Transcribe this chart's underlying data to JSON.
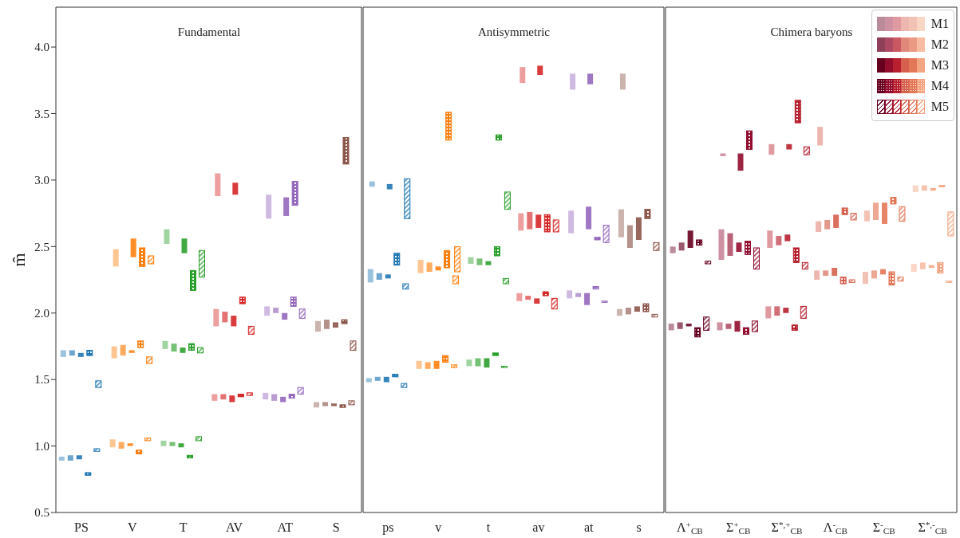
{
  "chart_data": [
    {
      "type": "bar",
      "title": "Fundamental",
      "ylabel": "m̂",
      "categories": [
        "PS",
        "V",
        "T",
        "AV",
        "AT",
        "S"
      ],
      "ylim": [
        0.5,
        4.3
      ],
      "yticks": [
        0.5,
        {
          "value": 1,
          "label": "1.0"
        },
        1.5,
        {
          "value": 2,
          "label": "2.0"
        },
        2.5,
        {
          "value": 3,
          "label": "3.0"
        },
        3.5,
        {
          "value": 4,
          "label": "4.0"
        }
      ],
      "series": [
        {
          "colors": [
            "#1f77b4",
            "#ff7f0e",
            "#2ca02c",
            "#d62728",
            "#9467bd",
            "#8c564b"
          ],
          "base": [
            0.89,
            0.99,
            1.0,
            1.34,
            1.35,
            1.29
          ],
          "values": [
            0.03,
            0.06,
            0.04,
            0.05,
            0.05,
            0.04
          ]
        },
        {
          "colors": [
            "#1f77b4",
            "#ff7f0e",
            "#2ca02c",
            "#d62728",
            "#9467bd",
            "#8c564b"
          ],
          "base": [
            1.67,
            1.66,
            1.73,
            1.9,
            1.98,
            1.86
          ],
          "values": [
            0.05,
            0.09,
            0.06,
            0.13,
            0.07,
            0.08
          ]
        },
        {
          "colors": [
            "#1f77b4",
            "#ff7f0e",
            "#2ca02c",
            "#d62728",
            "#9467bd",
            "#8c564b"
          ],
          "base": [
            null,
            2.35,
            2.52,
            2.88,
            2.71,
            null
          ],
          "values": [
            null,
            0.13,
            0.11,
            0.17,
            0.18,
            null
          ]
        },
        {
          "colors": [
            "#1f77b4",
            "#ff7f0e",
            "#2ca02c",
            "#d62728",
            "#9467bd",
            "#8c564b"
          ],
          "base": [
            0.89,
            0.98,
            1.0,
            1.35,
            1.34,
            1.3
          ],
          "values": [
            0.04,
            0.05,
            0.03,
            0.04,
            0.05,
            0.03
          ]
        },
        {
          "colors": [
            "#1f77b4",
            "#ff7f0e",
            "#2ca02c",
            "#d62728",
            "#9467bd",
            "#8c564b"
          ],
          "base": [
            1.68,
            1.68,
            1.71,
            1.93,
            2.0,
            1.88
          ],
          "values": [
            0.04,
            0.08,
            0.06,
            0.08,
            0.04,
            0.07
          ]
        },
        {
          "colors": [
            "#1f77b4",
            "#ff7f0e",
            "#2ca02c",
            "#d62728",
            "#9467bd",
            "#8c564b"
          ],
          "base": [
            null,
            null,
            null,
            null,
            null,
            null
          ],
          "values": [
            null,
            null,
            null,
            null,
            null,
            null
          ]
        },
        {
          "colors": [
            "#1f77b4",
            "#ff7f0e",
            "#2ca02c",
            "#d62728",
            "#9467bd",
            "#8c564b"
          ],
          "base": [
            0.9,
            1.0,
            0.99,
            1.33,
            1.33,
            1.3
          ],
          "values": [
            0.03,
            0.02,
            0.03,
            0.05,
            0.04,
            0.02
          ]
        },
        {
          "colors": [
            "#1f77b4",
            "#ff7f0e",
            "#2ca02c",
            "#d62728",
            "#9467bd",
            "#8c564b"
          ],
          "base": [
            1.67,
            1.7,
            1.7,
            1.9,
            1.95,
            1.89
          ],
          "values": [
            0.03,
            0.02,
            0.04,
            0.08,
            0.05,
            0.04
          ]
        },
        {
          "colors": [
            "#1f77b4",
            "#ff7f0e",
            "#2ca02c",
            "#d62728",
            "#9467bd",
            "#8c564b"
          ],
          "base": [
            null,
            2.42,
            2.45,
            2.89,
            2.73,
            null
          ],
          "values": [
            null,
            0.14,
            0.11,
            0.09,
            0.14,
            null
          ]
        },
        {
          "colors": [
            "#1f77b4",
            "#ff7f0e",
            "#2ca02c",
            "#d62728",
            "#9467bd",
            "#8c564b"
          ],
          "base": [
            0.78,
            0.94,
            0.91,
            1.37,
            1.36,
            1.29
          ],
          "values": [
            0.02,
            0.03,
            0.02,
            0.02,
            0.03,
            0.02
          ]
        },
        {
          "colors": [
            "#1f77b4",
            "#ff7f0e",
            "#2ca02c",
            "#d62728",
            "#9467bd",
            "#8c564b"
          ],
          "base": [
            1.68,
            1.74,
            1.72,
            2.07,
            2.05,
            1.92
          ],
          "values": [
            0.04,
            0.05,
            0.05,
            0.05,
            0.07,
            0.03
          ]
        },
        {
          "colors": [
            "#1f77b4",
            "#ff7f0e",
            "#2ca02c",
            "#d62728",
            "#9467bd",
            "#8c564b"
          ],
          "base": [
            null,
            2.35,
            2.17,
            null,
            2.81,
            3.12
          ],
          "values": [
            null,
            0.14,
            0.15,
            null,
            0.18,
            0.2
          ]
        },
        {
          "colors": [
            "#1f77b4",
            "#ff7f0e",
            "#2ca02c",
            "#d62728",
            "#9467bd",
            "#8c564b"
          ],
          "base": [
            0.96,
            1.04,
            1.04,
            1.38,
            1.39,
            1.31
          ],
          "values": [
            0.02,
            0.02,
            0.03,
            0.02,
            0.05,
            0.03
          ]
        },
        {
          "colors": [
            "#1f77b4",
            "#ff7f0e",
            "#2ca02c",
            "#d62728",
            "#9467bd",
            "#8c564b"
          ],
          "base": [
            1.44,
            1.62,
            1.7,
            1.84,
            1.96,
            1.72
          ],
          "values": [
            0.05,
            0.05,
            0.04,
            0.06,
            0.07,
            0.07
          ]
        },
        {
          "colors": [
            "#1f77b4",
            "#ff7f0e",
            "#2ca02c",
            "#d62728",
            "#9467bd",
            "#8c564b"
          ],
          "base": [
            null,
            2.37,
            2.27,
            null,
            null,
            null
          ],
          "values": [
            null,
            0.06,
            0.2,
            null,
            null,
            null
          ]
        }
      ]
    },
    {
      "type": "bar",
      "title": "Antisymmetric",
      "categories": [
        "ps",
        "v",
        "t",
        "av",
        "at",
        "s"
      ],
      "ylim": [
        0.5,
        4.3
      ],
      "tick_labels": "x",
      "series": [
        {
          "colors": [
            "#1f77b4",
            "#ff7f0e",
            "#2ca02c",
            "#d62728",
            "#9467bd",
            "#8c564b"
          ],
          "base": [
            1.48,
            1.58,
            1.6,
            2.09,
            2.11,
            1.98
          ],
          "values": [
            0.03,
            0.06,
            0.05,
            0.06,
            0.06,
            0.05
          ]
        },
        {
          "colors": [
            "#1f77b4",
            "#ff7f0e",
            "#2ca02c",
            "#d62728",
            "#9467bd",
            "#8c564b"
          ],
          "base": [
            2.23,
            2.3,
            2.37,
            2.62,
            2.6,
            2.57
          ],
          "values": [
            0.1,
            0.1,
            0.05,
            0.13,
            0.17,
            0.21
          ]
        },
        {
          "colors": [
            "#1f77b4",
            "#ff7f0e",
            "#2ca02c",
            "#d62728",
            "#9467bd",
            "#8c564b"
          ],
          "base": [
            2.95,
            null,
            null,
            3.73,
            3.68,
            3.68
          ],
          "values": [
            0.04,
            null,
            null,
            0.12,
            0.12,
            0.12
          ]
        },
        {
          "colors": [
            "#1f77b4",
            "#ff7f0e",
            "#2ca02c",
            "#d62728",
            "#9467bd",
            "#8c564b"
          ],
          "base": [
            1.49,
            1.58,
            1.6,
            2.1,
            2.12,
            1.99
          ],
          "values": [
            0.03,
            0.05,
            0.06,
            0.03,
            0.03,
            0.05
          ]
        },
        {
          "colors": [
            "#1f77b4",
            "#ff7f0e",
            "#2ca02c",
            "#d62728",
            "#9467bd",
            "#8c564b"
          ],
          "base": [
            2.25,
            2.31,
            2.36,
            2.63,
            null,
            2.49
          ],
          "values": [
            0.05,
            0.07,
            0.05,
            0.13,
            null,
            0.17
          ]
        },
        {
          "colors": [
            "#1f77b4",
            "#ff7f0e",
            "#2ca02c",
            "#d62728",
            "#9467bd",
            "#8c564b"
          ],
          "base": [
            null,
            null,
            null,
            null,
            null,
            null
          ],
          "values": [
            null,
            null,
            null,
            null,
            null,
            null
          ]
        },
        {
          "colors": [
            "#1f77b4",
            "#ff7f0e",
            "#2ca02c",
            "#d62728",
            "#9467bd",
            "#8c564b"
          ],
          "base": [
            1.48,
            1.58,
            1.59,
            2.07,
            2.06,
            2.01
          ],
          "values": [
            0.04,
            0.06,
            0.07,
            0.04,
            0.09,
            0.04
          ]
        },
        {
          "colors": [
            "#1f77b4",
            "#ff7f0e",
            "#2ca02c",
            "#d62728",
            "#9467bd",
            "#8c564b"
          ],
          "base": [
            2.26,
            2.32,
            2.36,
            2.64,
            2.63,
            2.55
          ],
          "values": [
            0.03,
            0.03,
            0.03,
            0.1,
            0.17,
            0.17
          ]
        },
        {
          "colors": [
            "#1f77b4",
            "#ff7f0e",
            "#2ca02c",
            "#d62728",
            "#9467bd",
            "#8c564b"
          ],
          "base": [
            2.93,
            null,
            null,
            3.79,
            3.72,
            null
          ],
          "values": [
            0.04,
            null,
            null,
            0.07,
            0.08,
            null
          ]
        },
        {
          "colors": [
            "#1f77b4",
            "#ff7f0e",
            "#2ca02c",
            "#d62728",
            "#9467bd",
            "#8c564b"
          ],
          "base": [
            1.52,
            1.63,
            1.68,
            2.13,
            2.18,
            2.01
          ],
          "values": [
            0.02,
            0.05,
            0.02,
            0.03,
            0.02,
            0.06
          ]
        },
        {
          "colors": [
            "#1f77b4",
            "#ff7f0e",
            "#2ca02c",
            "#d62728",
            "#9467bd",
            "#8c564b"
          ],
          "base": [
            2.36,
            2.34,
            2.43,
            2.61,
            2.55,
            2.71
          ],
          "values": [
            0.09,
            0.13,
            0.07,
            0.13,
            0.02,
            0.07
          ]
        },
        {
          "colors": [
            "#1f77b4",
            "#ff7f0e",
            "#2ca02c",
            "#d62728",
            "#9467bd",
            "#8c564b"
          ],
          "base": [
            null,
            3.3,
            3.3,
            null,
            null,
            null
          ],
          "values": [
            null,
            0.21,
            0.04,
            null,
            null,
            null
          ]
        },
        {
          "colors": [
            "#1f77b4",
            "#ff7f0e",
            "#2ca02c",
            "#d62728",
            "#9467bd",
            "#8c564b"
          ],
          "base": [
            1.44,
            1.59,
            1.59,
            2.03,
            2.08,
            1.97
          ],
          "values": [
            0.03,
            0.02,
            0.01,
            0.08,
            0.01,
            0.02
          ]
        },
        {
          "colors": [
            "#1f77b4",
            "#ff7f0e",
            "#2ca02c",
            "#d62728",
            "#9467bd",
            "#8c564b"
          ],
          "base": [
            2.18,
            2.22,
            2.22,
            2.61,
            2.53,
            2.47
          ],
          "values": [
            0.04,
            0.06,
            0.04,
            0.09,
            0.13,
            0.06
          ]
        },
        {
          "colors": [
            "#1f77b4",
            "#ff7f0e",
            "#2ca02c",
            "#d62728",
            "#9467bd",
            "#8c564b"
          ],
          "base": [
            2.71,
            2.31,
            2.78,
            null,
            null,
            null
          ],
          "values": [
            0.3,
            0.19,
            0.13,
            null,
            null,
            null
          ]
        }
      ]
    },
    {
      "type": "bar",
      "title": "Chimera baryons",
      "categories": [
        "Λ$^{+}$$_{CB}$",
        "Σ$^{+}$$_{CB}$",
        "Σ$^{*,+}$$_{CB}$",
        "Λ$^{-}$$_{CB}$",
        "Σ$^{-}$$_{CB}$",
        "Σ$^{*,-}$$_{CB}$"
      ],
      "ylim": [
        0.5,
        4.3
      ],
      "tick_labels": "x",
      "legend": "top right",
      "series": [
        {
          "name": "M1",
          "colors": [
            "#67001f",
            "#920c2e",
            "#b8202f",
            "#d6604d",
            "#e37858",
            "#f4a582"
          ],
          "base": [
            1.87,
            1.87,
            1.96,
            2.25,
            2.22,
            2.31
          ],
          "values": [
            0.05,
            0.06,
            0.09,
            0.07,
            0.09,
            0.06
          ]
        },
        {
          "colors": [
            "#67001f",
            "#920c2e",
            "#b8202f",
            "#d6604d",
            "#e37858",
            "#f4a582"
          ],
          "base": [
            2.45,
            2.4,
            2.49,
            2.61,
            2.69,
            2.91
          ],
          "values": [
            0.05,
            0.23,
            0.13,
            0.08,
            0.08,
            0.05
          ]
        },
        {
          "colors": [
            "#67001f",
            "#920c2e",
            "#b8202f",
            "#d6604d",
            "#e37858",
            "#f4a582"
          ],
          "base": [
            null,
            3.18,
            3.19,
            3.26,
            null,
            null
          ],
          "values": [
            null,
            0.02,
            0.08,
            0.14,
            null,
            null
          ]
        },
        {
          "name": "M2",
          "colors": [
            "#67001f",
            "#920c2e",
            "#b8202f",
            "#d6604d",
            "#e37858",
            "#f4a582"
          ],
          "base": [
            1.88,
            1.88,
            1.98,
            2.28,
            2.26,
            2.33
          ],
          "values": [
            0.05,
            0.04,
            0.07,
            0.04,
            0.06,
            0.05
          ]
        },
        {
          "colors": [
            "#67001f",
            "#920c2e",
            "#b8202f",
            "#d6604d",
            "#e37858",
            "#f4a582"
          ],
          "base": [
            2.47,
            2.43,
            2.51,
            2.63,
            2.7,
            2.92
          ],
          "values": [
            0.06,
            0.17,
            0.07,
            0.07,
            0.13,
            0.04
          ]
        },
        {
          "colors": [
            "#67001f",
            "#920c2e",
            "#b8202f",
            "#d6604d",
            "#e37858",
            "#f4a582"
          ],
          "base": [
            null,
            null,
            null,
            null,
            null,
            null
          ],
          "values": [
            null,
            null,
            null,
            null,
            null,
            null
          ]
        },
        {
          "name": "M3",
          "colors": [
            "#67001f",
            "#920c2e",
            "#b8202f",
            "#d6604d",
            "#e37858",
            "#f4a582"
          ],
          "base": [
            1.9,
            1.86,
            2.0,
            2.28,
            2.29,
            2.34
          ],
          "values": [
            0.02,
            0.08,
            0.04,
            0.06,
            0.04,
            0.02
          ]
        },
        {
          "colors": [
            "#67001f",
            "#920c2e",
            "#b8202f",
            "#d6604d",
            "#e37858",
            "#f4a582"
          ],
          "base": [
            2.49,
            2.46,
            2.54,
            2.64,
            2.67,
            2.92
          ],
          "values": [
            0.13,
            0.07,
            0.05,
            0.1,
            0.16,
            0.02
          ]
        },
        {
          "colors": [
            "#67001f",
            "#920c2e",
            "#b8202f",
            "#d6604d",
            "#e37858",
            "#f4a582"
          ],
          "base": [
            null,
            3.07,
            3.23,
            null,
            null,
            null
          ],
          "values": [
            null,
            0.13,
            0.04,
            null,
            null,
            null
          ]
        },
        {
          "name": "M4",
          "colors": [
            "#67001f",
            "#920c2e",
            "#b8202f",
            "#d6604d",
            "#e37858",
            "#f4a582"
          ],
          "base": [
            1.82,
            1.84,
            1.87,
            2.22,
            2.21,
            2.3
          ],
          "values": [
            0.07,
            0.05,
            0.04,
            0.05,
            0.1,
            0.08
          ]
        },
        {
          "colors": [
            "#67001f",
            "#920c2e",
            "#b8202f",
            "#d6604d",
            "#e37858",
            "#f4a582"
          ],
          "base": [
            2.51,
            2.44,
            2.38,
            2.74,
            2.82,
            2.95
          ],
          "values": [
            0.04,
            0.1,
            0.11,
            0.05,
            0.05,
            0.01
          ]
        },
        {
          "colors": [
            "#67001f",
            "#920c2e",
            "#b8202f",
            "#d6604d",
            "#e37858",
            "#f4a582"
          ],
          "base": [
            null,
            3.23,
            3.43,
            null,
            null,
            null
          ],
          "values": [
            null,
            0.14,
            0.17,
            null,
            null,
            null
          ]
        },
        {
          "name": "M5",
          "colors": [
            "#67001f",
            "#920c2e",
            "#b8202f",
            "#d6604d",
            "#e37858",
            "#f4a582"
          ],
          "base": [
            1.87,
            1.86,
            1.96,
            2.23,
            2.24,
            2.23
          ],
          "values": [
            0.1,
            0.08,
            0.09,
            0.02,
            0.03,
            0.01
          ]
        },
        {
          "colors": [
            "#67001f",
            "#920c2e",
            "#b8202f",
            "#d6604d",
            "#e37858",
            "#f4a582"
          ],
          "base": [
            2.37,
            2.33,
            2.33,
            2.7,
            2.69,
            2.58
          ],
          "values": [
            0.02,
            0.16,
            0.05,
            0.05,
            0.11,
            0.18
          ]
        },
        {
          "colors": [
            "#67001f",
            "#920c2e",
            "#b8202f",
            "#d6604d",
            "#e37858",
            "#f4a582"
          ],
          "base": [
            null,
            null,
            3.19,
            null,
            null,
            null
          ],
          "values": [
            null,
            null,
            0.06,
            null,
            null,
            null
          ]
        }
      ]
    }
  ]
}
